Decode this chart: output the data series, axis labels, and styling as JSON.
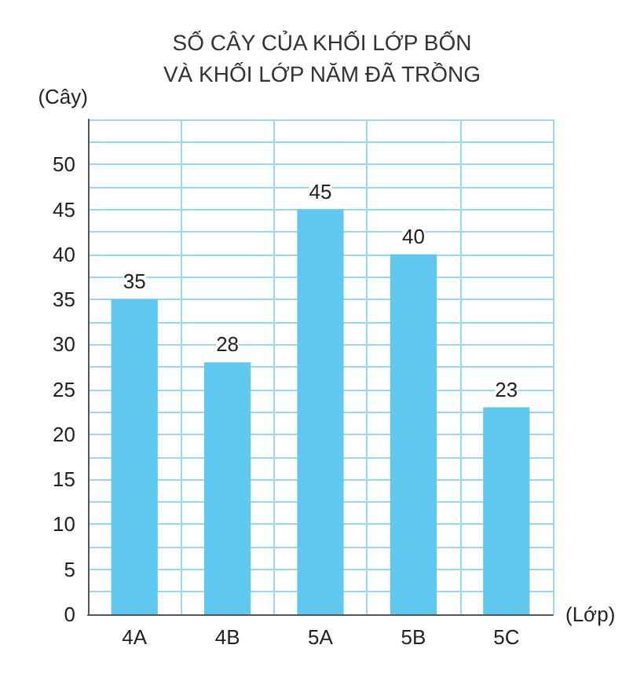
{
  "chart_data": {
    "type": "bar",
    "title": "SỐ CÂY CỦA KHỐI LỚP BỐN\nVÀ KHỐI LỚP NĂM ĐÃ TRỒNG",
    "ylabel": "(Cây)",
    "xlabel": "(Lớp)",
    "categories": [
      "4A",
      "4B",
      "5A",
      "5B",
      "5C"
    ],
    "values": [
      35,
      28,
      45,
      40,
      23
    ],
    "color": "#5ec8ee",
    "ylim": [
      0,
      55
    ],
    "yticks": [
      0,
      {
        "value": 2.5,
        "label": null
      },
      5,
      {
        "value": 7.5,
        "label": null
      },
      10,
      {
        "value": 12.5,
        "label": null
      },
      15,
      {
        "value": 17.5,
        "label": null
      },
      20,
      {
        "value": 22.5,
        "label": null
      },
      25,
      {
        "value": 27.5,
        "label": null
      },
      30,
      {
        "value": 32.5,
        "label": null
      },
      35,
      {
        "value": 37.5,
        "label": null
      },
      40,
      {
        "value": 42.5,
        "label": null
      },
      45,
      {
        "value": 47.5,
        "label": null
      },
      50,
      {
        "value": 52.5,
        "label": null
      },
      {
        "value": 55,
        "label": null
      }
    ],
    "grid": true,
    "data_labels": true
  }
}
